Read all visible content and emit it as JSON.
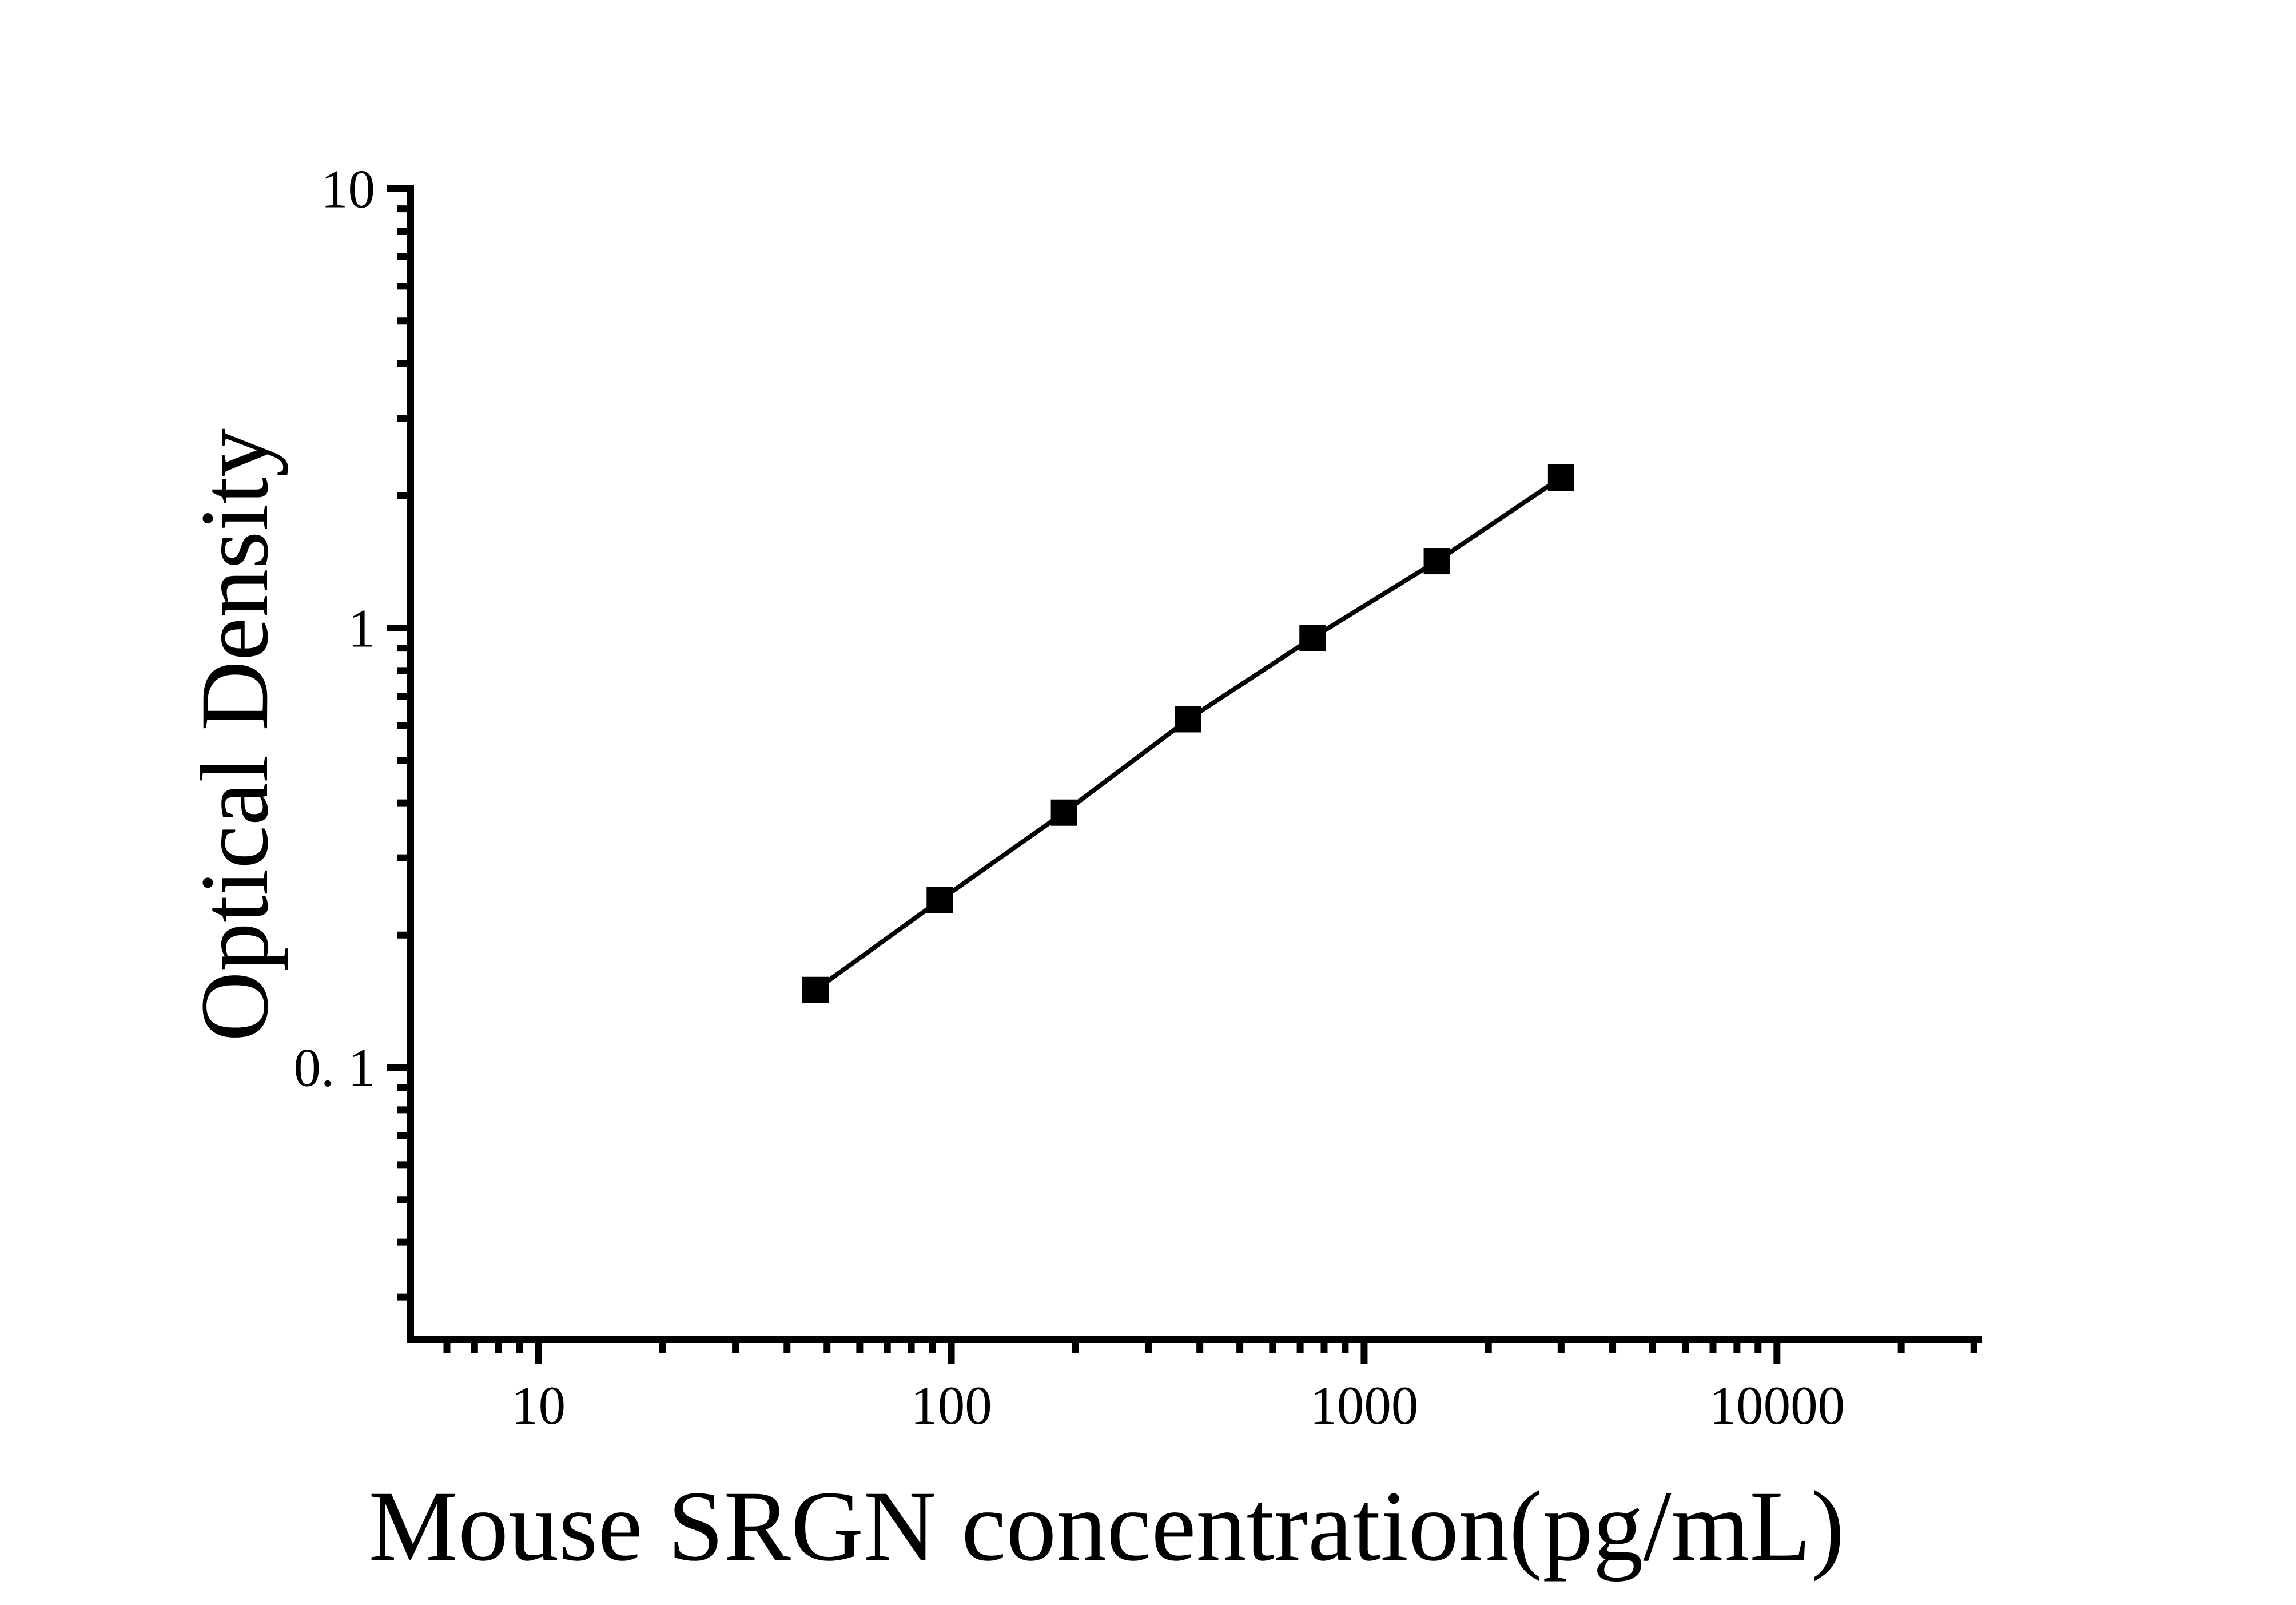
{
  "figure": {
    "background": "#ffffff",
    "foreground": "#000000"
  },
  "chart_data": {
    "type": "line",
    "title": "",
    "xlabel": "Mouse SRGN concentration(pg/mL)",
    "ylabel": "Optical Density",
    "x_scale": "log10",
    "y_scale": "log10",
    "xlim": [
      4.9,
      30800
    ],
    "ylim": [
      0.024,
      10
    ],
    "grid": "off",
    "legend": "none",
    "line_color": "#000000",
    "marker": "filled-square",
    "marker_color": "#000000",
    "x_major_ticks": [
      {
        "value": 10,
        "label": "10"
      },
      {
        "value": 100,
        "label": "100"
      },
      {
        "value": 1000,
        "label": "1000"
      },
      {
        "value": 10000,
        "label": "10000"
      }
    ],
    "x_minor_ticks": [
      6,
      7,
      8,
      9,
      20,
      30,
      40,
      50,
      60,
      70,
      80,
      90,
      200,
      300,
      400,
      500,
      600,
      700,
      800,
      900,
      2000,
      3000,
      4000,
      5000,
      6000,
      7000,
      8000,
      9000,
      20000,
      30000
    ],
    "y_major_ticks": [
      {
        "value": 10,
        "label": "10"
      },
      {
        "value": 1,
        "label": "1"
      },
      {
        "value": 0.1,
        "label": "0. 1"
      }
    ],
    "y_minor_ticks": [
      0.03,
      0.04,
      0.05,
      0.06,
      0.07,
      0.08,
      0.09,
      0.2,
      0.3,
      0.4,
      0.5,
      0.6,
      0.7,
      0.8,
      0.9,
      2,
      3,
      4,
      5,
      6,
      7,
      8,
      9
    ],
    "series": [
      {
        "x": [
          46.88,
          93.75,
          187.5,
          375,
          750,
          1500,
          3000
        ],
        "y": [
          0.15,
          0.24,
          0.38,
          0.62,
          0.95,
          1.42,
          2.2
        ]
      }
    ]
  }
}
